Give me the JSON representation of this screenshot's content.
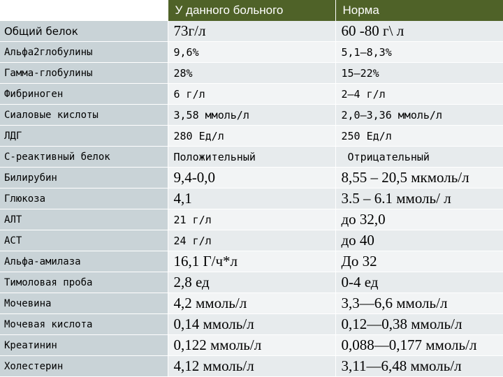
{
  "header": {
    "col1": "",
    "col2": "У данного больного",
    "col3": "Норма"
  },
  "rows": [
    {
      "name": "Общий белок",
      "patient": "73г/л",
      "norm": "60 -80 г\\ л"
    },
    {
      "name": "Альфа2глобулины",
      "patient": "9,6%",
      "norm": "5,1—8,3%"
    },
    {
      "name": "Гамма-глобулины",
      "patient": "28%",
      "norm": "15—22%"
    },
    {
      "name": "Фибриноген",
      "patient": "6 г/л",
      "norm": "2—4 г/л"
    },
    {
      "name": "Сиаловые кислоты",
      "patient": "3,58 ммоль/л",
      "norm": "2,0—3,36 ммоль/л"
    },
    {
      "name": "ЛДГ",
      "patient": "280 Ед/л",
      "norm": "250 Ед/л"
    },
    {
      "name": "С-реактивный белок",
      "patient": "Положительный",
      "norm": " Отрицательный"
    },
    {
      "name": "Билирубин",
      "patient": "9,4-0,0",
      "norm": "8,55 – 20,5 мкмоль/л"
    },
    {
      "name": "Глюкоза",
      "patient": "4,1",
      "norm": "3.5 – 6.1 ммоль/ л"
    },
    {
      "name": "АЛТ",
      "patient": "21 г/л",
      "norm": "до 32,0"
    },
    {
      "name": "АСТ",
      "patient": "24 г/л",
      "norm": "до 40"
    },
    {
      "name": "Альфа-амилаза",
      "patient": "16,1 Г/ч*л",
      "norm": "До 32"
    },
    {
      "name": "Тимоловая проба",
      "patient": "2,8 ед",
      "norm": "0-4 ед"
    },
    {
      "name": "Мочевина",
      "patient": "4,2 ммоль/л",
      "norm": "3,3—6,6 ммоль/л"
    },
    {
      "name": "Мочевая кислота",
      "patient": "0,14 ммоль/л",
      "norm": "0,12—0,38 ммоль/л"
    },
    {
      "name": "Креатинин",
      "patient": "0,122 ммоль/л",
      "norm": "0,088—0,177 ммоль/л"
    },
    {
      "name": "Холестерин",
      "patient": "4,12 ммоль/л",
      "norm": "3,11—6,48 ммоль/л"
    }
  ],
  "colors": {
    "header_bg": "#4f6228",
    "name_col_bg": "#c9d3d7",
    "row_light": "#f2f4f5",
    "row_mid": "#e7ebed"
  }
}
